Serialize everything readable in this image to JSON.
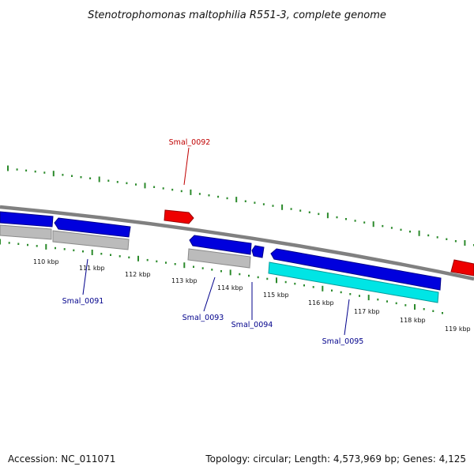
{
  "title": "Stenotrophomonas maltophilia R551-3, complete genome",
  "footer": {
    "accession": "Accession: NC_011071",
    "summary": "Topology: circular; Length: 4,573,969 bp; Genes: 4,125"
  },
  "colors": {
    "backbone": "#7f7f7f",
    "cds_forward": "#0000dd",
    "cds_reverse_strand_box": "#bbbbbb",
    "rna": "#ee0000",
    "highlight_feature": "#00e5e5",
    "tick_marks": "#2b8a2b",
    "label_forward": "#c00000",
    "label_reverse": "#00008b"
  },
  "ruler": {
    "unit": "kbp",
    "labels": [
      "110 kbp",
      "111 kbp",
      "112 kbp",
      "113 kbp",
      "114 kbp",
      "115 kbp",
      "116 kbp",
      "117 kbp",
      "118 kbp",
      "119 kbp"
    ]
  },
  "gene_labels": {
    "top": [
      "Smal_0092"
    ],
    "bottom": [
      "Smal_0091",
      "Smal_0093",
      "Smal_0094",
      "Smal_0095"
    ]
  }
}
